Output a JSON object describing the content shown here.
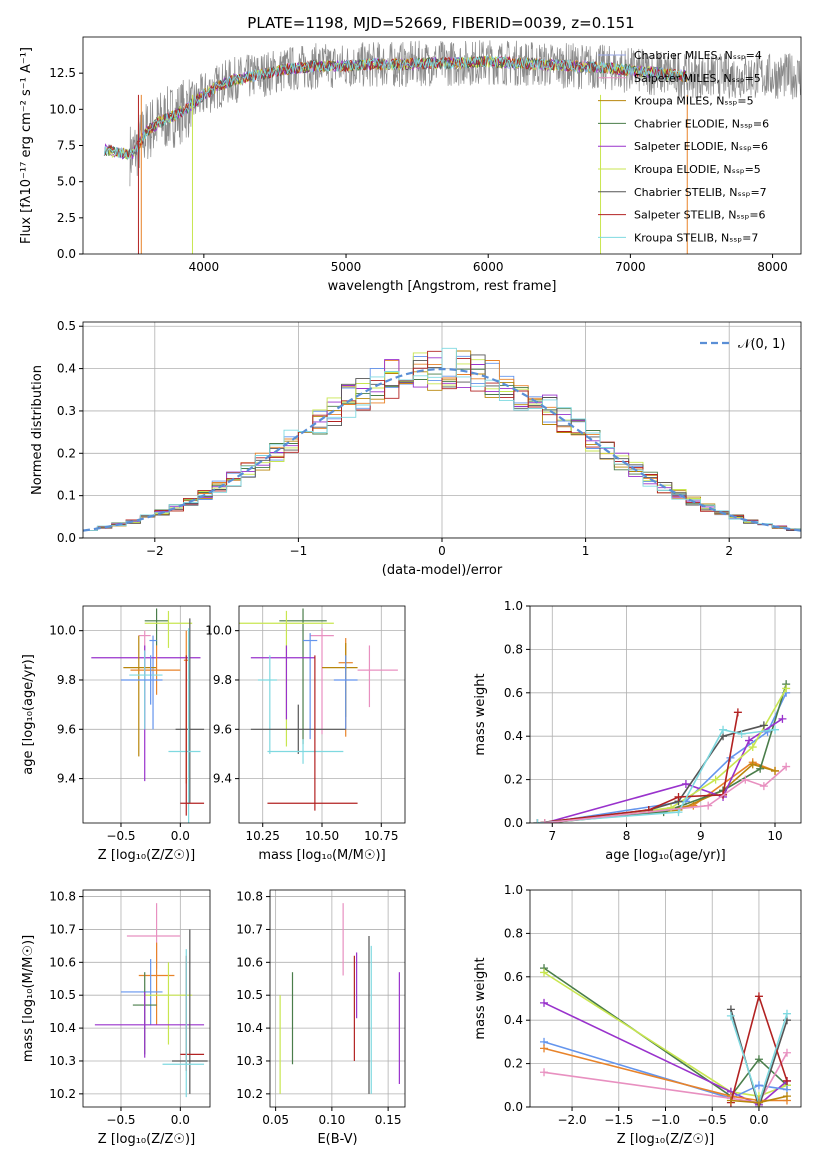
{
  "title": "PLATE=1198, MJD=52669, FIBERID=0039, z=0.151",
  "colors": [
    "#6495ed",
    "#e8832a",
    "#b8860b",
    "#4a7d4a",
    "#9932cc",
    "#c8e650",
    "#555555",
    "#b22222",
    "#7fd9e0",
    "#e890c0"
  ],
  "chart_data": [
    {
      "id": "spectrum",
      "type": "line",
      "xlabel": "wavelength [Angstrom, rest frame]",
      "ylabel": "Flux [fλ10⁻¹⁷ erg cm⁻² s⁻¹ A⁻¹]",
      "xlim": [
        3150,
        8200
      ],
      "ylim": [
        0,
        15
      ],
      "xticks": [
        4000,
        5000,
        6000,
        7000,
        8000
      ],
      "yticks": [
        0.0,
        2.5,
        5.0,
        7.5,
        10.0,
        12.5
      ],
      "grid": false,
      "legend_position": "top-right",
      "legend": [
        {
          "label": "Chabrier MILES, Nₛₛₚ=4",
          "color": "#9aa8e8"
        },
        {
          "label": "Salpeter MILES, Nₛₛₚ=5",
          "color": "#e890c0"
        },
        {
          "label": "Kroupa MILES, Nₛₛₚ=5",
          "color": "#b8860b"
        },
        {
          "label": "Chabrier ELODIE, Nₛₛₚ=6",
          "color": "#4a7d4a"
        },
        {
          "label": "Salpeter ELODIE, Nₛₛₚ=6",
          "color": "#9932cc"
        },
        {
          "label": "Kroupa ELODIE, Nₛₛₚ=5",
          "color": "#c8e650"
        },
        {
          "label": "Chabrier STELIB, Nₛₛₚ=7",
          "color": "#555555"
        },
        {
          "label": "Salpeter STELIB, Nₛₛₚ=6",
          "color": "#b22222"
        },
        {
          "label": "Kroupa STELIB, Nₛₛₚ=7",
          "color": "#7fd9e0"
        }
      ],
      "model_curve": {
        "x": [
          3300,
          3400,
          3500,
          3600,
          3700,
          3800,
          3900,
          4000,
          4100,
          4200,
          4300,
          4400,
          4500,
          4600,
          4700,
          4800,
          4900,
          5000,
          5200,
          5400,
          5600,
          5800,
          6000,
          6200,
          6400,
          6600,
          6800,
          7000,
          7200,
          7400
        ],
        "y": [
          7.2,
          7.0,
          6.9,
          8.5,
          9.2,
          9.6,
          10.2,
          11.0,
          11.6,
          12.0,
          12.2,
          12.4,
          12.6,
          12.8,
          12.9,
          13.0,
          13.0,
          13.0,
          13.1,
          13.1,
          13.2,
          13.2,
          13.3,
          13.2,
          13.1,
          13.0,
          12.9,
          12.7,
          12.5,
          12.3
        ]
      },
      "data_noise_amplitude": 1.6,
      "data_x_range": [
        3480,
        8200
      ]
    },
    {
      "id": "residuals",
      "type": "histogram",
      "xlabel": "(data-model)/error",
      "ylabel": "Normed distribution",
      "xlim": [
        -2.5,
        2.5
      ],
      "ylim": [
        0,
        0.51
      ],
      "xticks": [
        -2,
        -1,
        0,
        1,
        2
      ],
      "yticks": [
        0.0,
        0.1,
        0.2,
        0.3,
        0.4,
        0.5
      ],
      "grid": true,
      "legend": [
        {
          "label": "𝒩(0, 1)",
          "color": "#5a8fd6"
        }
      ],
      "legend_position": "top-right",
      "bin_width": 0.1,
      "reference": "normal"
    },
    {
      "id": "age-vs-z",
      "type": "errorbar",
      "xlabel": "Z [log₁₀(Z/Z☉)]",
      "ylabel": "age  [log₁₀(age/yr)]",
      "xlim": [
        -0.82,
        0.25
      ],
      "ylim": [
        9.22,
        10.1
      ],
      "xticks": [
        -0.5,
        0.0
      ],
      "yticks": [
        9.4,
        9.6,
        9.8,
        10.0
      ],
      "grid": true,
      "points": [
        {
          "x": -0.2,
          "y": 10.04,
          "xerr": [
            0.1,
            0.1
          ],
          "yerr": [
            0.1,
            0.05
          ],
          "c": 3
        },
        {
          "x": -0.1,
          "y": 10.03,
          "xerr": [
            0.2,
            0.2
          ],
          "yerr": [
            0.1,
            0.05
          ],
          "c": 5
        },
        {
          "x": -0.3,
          "y": 9.98,
          "xerr": [
            0.05,
            0.05
          ],
          "yerr": [
            0.38,
            0.02
          ],
          "c": 9
        },
        {
          "x": -0.23,
          "y": 9.96,
          "xerr": [
            0.03,
            0.03
          ],
          "yerr": [
            0.36,
            0.02
          ],
          "c": 0
        },
        {
          "x": -0.3,
          "y": 9.89,
          "xerr": [
            0.45,
            0.47
          ],
          "yerr": [
            0.5,
            0.05
          ],
          "c": 4
        },
        {
          "x": 0.05,
          "y": 9.88,
          "xerr": [
            0.02,
            0.02
          ],
          "yerr": [
            0.5,
            0.12
          ],
          "c": 1
        },
        {
          "x": -0.35,
          "y": 9.85,
          "xerr": [
            0.13,
            0.15
          ],
          "yerr": [
            0.36,
            0.13
          ],
          "c": 2
        },
        {
          "x": -0.2,
          "y": 9.84,
          "xerr": [
            0.22,
            0.2
          ],
          "yerr": [
            0.1,
            0.1
          ],
          "c": 1
        },
        {
          "x": -0.3,
          "y": 9.82,
          "xerr": [
            0.13,
            0.15
          ],
          "yerr": [
            0.22,
            0.1
          ],
          "c": 8
        },
        {
          "x": -0.25,
          "y": 9.8,
          "xerr": [
            0.25,
            0.1
          ],
          "yerr": [
            0.1,
            0.1
          ],
          "c": 0
        },
        {
          "x": 0.08,
          "y": 9.6,
          "xerr": [
            0.12,
            0.12
          ],
          "yerr": [
            0.3,
            0.45
          ],
          "c": 6
        },
        {
          "x": 0.07,
          "y": 9.51,
          "xerr": [
            0.17,
            0.1
          ],
          "yerr": [
            0.3,
            0.5
          ],
          "c": 8
        },
        {
          "x": 0.05,
          "y": 9.3,
          "xerr": [
            0.05,
            0.15
          ],
          "yerr": [
            0.05,
            0.6
          ],
          "c": 7
        }
      ]
    },
    {
      "id": "age-vs-mass",
      "type": "errorbar",
      "xlabel": "mass [log₁₀(M/M☉)]",
      "ylabel": "",
      "xlim": [
        10.15,
        10.85
      ],
      "ylim": [
        9.22,
        10.1
      ],
      "xticks": [
        10.25,
        10.5,
        10.75
      ],
      "yticks": [
        9.4,
        9.6,
        9.8,
        10.0
      ],
      "grid": true,
      "points": [
        {
          "x": 10.42,
          "y": 10.04,
          "xerr": [
            0.1,
            0.1
          ],
          "yerr": [
            0.5,
            0.05
          ],
          "c": 3
        },
        {
          "x": 10.35,
          "y": 10.03,
          "xerr": [
            0.2,
            0.2
          ],
          "yerr": [
            0.5,
            0.05
          ],
          "c": 5
        },
        {
          "x": 10.5,
          "y": 9.98,
          "xerr": [
            0.05,
            0.05
          ],
          "yerr": [
            0.4,
            0.03
          ],
          "c": 9
        },
        {
          "x": 10.45,
          "y": 9.96,
          "xerr": [
            0.03,
            0.03
          ],
          "yerr": [
            0.4,
            0.03
          ],
          "c": 0
        },
        {
          "x": 10.35,
          "y": 9.89,
          "xerr": [
            0.15,
            0.12
          ],
          "yerr": [
            0.25,
            0.05
          ],
          "c": 4
        },
        {
          "x": 10.6,
          "y": 9.87,
          "xerr": [
            0.03,
            0.03
          ],
          "yerr": [
            0.3,
            0.1
          ],
          "c": 1
        },
        {
          "x": 10.6,
          "y": 9.85,
          "xerr": [
            0.1,
            0.05
          ],
          "yerr": [
            0.2,
            0.1
          ],
          "c": 2
        },
        {
          "x": 10.7,
          "y": 9.84,
          "xerr": [
            0.05,
            0.12
          ],
          "yerr": [
            0.15,
            0.1
          ],
          "c": 9
        },
        {
          "x": 10.6,
          "y": 9.8,
          "xerr": [
            0.05,
            0.05
          ],
          "yerr": [
            0.2,
            0.1
          ],
          "c": 0
        },
        {
          "x": 10.28,
          "y": 9.8,
          "xerr": [
            0.05,
            0.03
          ],
          "yerr": [
            0.3,
            0.1
          ],
          "c": 8
        },
        {
          "x": 10.4,
          "y": 9.6,
          "xerr": [
            0.2,
            0.2
          ],
          "yerr": [
            0.1,
            0.1
          ],
          "c": 6
        },
        {
          "x": 10.42,
          "y": 9.51,
          "xerr": [
            0.15,
            0.17
          ],
          "yerr": [
            0.05,
            0.05
          ],
          "c": 8
        },
        {
          "x": 10.47,
          "y": 9.3,
          "xerr": [
            0.2,
            0.18
          ],
          "yerr": [
            0.03,
            0.6
          ],
          "c": 7
        }
      ]
    },
    {
      "id": "weight-vs-age",
      "type": "line",
      "xlabel": "age  [log₁₀(age/yr)]",
      "ylabel": "mass weight",
      "xlim": [
        6.7,
        10.35
      ],
      "ylim": [
        0,
        1.0
      ],
      "xticks": [
        7,
        8,
        9,
        10
      ],
      "yticks": [
        0.0,
        0.2,
        0.4,
        0.6,
        0.8,
        1.0
      ],
      "grid": true,
      "series": [
        {
          "c": 0,
          "x": [
            6.9,
            8.8,
            9.4,
            9.9,
            10.15
          ],
          "y": [
            0.0,
            0.1,
            0.3,
            0.42,
            0.6
          ]
        },
        {
          "c": 1,
          "x": [
            6.9,
            8.9,
            9.7,
            10.0
          ],
          "y": [
            0.0,
            0.08,
            0.28,
            0.24
          ]
        },
        {
          "c": 2,
          "x": [
            6.9,
            8.7,
            9.3,
            9.7,
            10.0
          ],
          "y": [
            0.0,
            0.06,
            0.15,
            0.27,
            0.24
          ]
        },
        {
          "c": 3,
          "x": [
            6.9,
            8.5,
            9.3,
            9.8,
            10.15
          ],
          "y": [
            0.0,
            0.05,
            0.15,
            0.25,
            0.64
          ]
        },
        {
          "c": 4,
          "x": [
            6.9,
            8.8,
            9.3,
            9.65,
            10.1
          ],
          "y": [
            0.0,
            0.18,
            0.12,
            0.38,
            0.48
          ]
        },
        {
          "c": 5,
          "x": [
            6.9,
            8.6,
            9.2,
            9.7,
            10.15
          ],
          "y": [
            0.0,
            0.07,
            0.2,
            0.35,
            0.62
          ]
        },
        {
          "c": 6,
          "x": [
            6.8,
            8.3,
            8.7,
            9.3,
            9.85
          ],
          "y": [
            0.0,
            0.06,
            0.1,
            0.4,
            0.45
          ]
        },
        {
          "c": 7,
          "x": [
            6.8,
            8.3,
            8.7,
            9.3,
            9.5
          ],
          "y": [
            0.0,
            0.06,
            0.12,
            0.13,
            0.51
          ]
        },
        {
          "c": 8,
          "x": [
            6.8,
            8.7,
            9.3,
            9.55,
            10.0
          ],
          "y": [
            0.0,
            0.05,
            0.43,
            0.41,
            0.43
          ]
        },
        {
          "c": 9,
          "x": [
            6.9,
            9.1,
            9.6,
            9.85,
            10.15
          ],
          "y": [
            0.0,
            0.08,
            0.2,
            0.17,
            0.26
          ]
        }
      ]
    },
    {
      "id": "mass-vs-z",
      "type": "errorbar",
      "xlabel": "Z [log₁₀(Z/Z☉)]",
      "ylabel": "mass [log₁₀(M/M☉)]",
      "xlim": [
        -0.82,
        0.25
      ],
      "ylim": [
        10.16,
        10.82
      ],
      "xticks": [
        -0.5,
        0.0
      ],
      "yticks": [
        10.2,
        10.3,
        10.4,
        10.5,
        10.6,
        10.7,
        10.8
      ],
      "grid": true,
      "points": [
        {
          "x": -0.2,
          "y": 10.68,
          "xerr": [
            0.25,
            0.2
          ],
          "yerr": [
            0.1,
            0.1
          ],
          "c": 9
        },
        {
          "x": -0.2,
          "y": 10.56,
          "xerr": [
            0.15,
            0.15
          ],
          "yerr": [
            0.15,
            0.1
          ],
          "c": 1
        },
        {
          "x": -0.25,
          "y": 10.51,
          "xerr": [
            0.25,
            0.1
          ],
          "yerr": [
            0.1,
            0.1
          ],
          "c": 0
        },
        {
          "x": -0.1,
          "y": 10.5,
          "xerr": [
            0.2,
            0.2
          ],
          "yerr": [
            0.15,
            0.1
          ],
          "c": 5
        },
        {
          "x": -0.3,
          "y": 10.47,
          "xerr": [
            0.1,
            0.1
          ],
          "yerr": [
            0.15,
            0.1
          ],
          "c": 3
        },
        {
          "x": -0.3,
          "y": 10.41,
          "xerr": [
            0.42,
            0.5
          ],
          "yerr": [
            0.1,
            0.1
          ],
          "c": 4
        },
        {
          "x": 0.08,
          "y": 10.3,
          "xerr": [
            0.15,
            0.15
          ],
          "yerr": [
            0.1,
            0.4
          ],
          "c": 6
        },
        {
          "x": 0.05,
          "y": 10.32,
          "xerr": [
            0.05,
            0.15
          ],
          "yerr": [
            0.05,
            0.3
          ],
          "c": 7
        },
        {
          "x": 0.05,
          "y": 10.29,
          "xerr": [
            0.2,
            0.15
          ],
          "yerr": [
            0.1,
            0.35
          ],
          "c": 8
        }
      ]
    },
    {
      "id": "mass-vs-ebv",
      "type": "errorbar",
      "xlabel": "E(B-V)",
      "ylabel": "",
      "xlim": [
        0.045,
        0.165
      ],
      "ylim": [
        10.16,
        10.82
      ],
      "xticks": [
        0.05,
        0.1,
        0.15
      ],
      "yticks": [
        10.2,
        10.3,
        10.4,
        10.5,
        10.6,
        10.7,
        10.8
      ],
      "grid": true,
      "points": [
        {
          "x": 0.054,
          "y": 10.35,
          "yerr": [
            0.15,
            0.15
          ],
          "c": 5
        },
        {
          "x": 0.065,
          "y": 10.43,
          "yerr": [
            0.14,
            0.14
          ],
          "c": 3
        },
        {
          "x": 0.11,
          "y": 10.68,
          "yerr": [
            0.12,
            0.1
          ],
          "c": 9
        },
        {
          "x": 0.12,
          "y": 10.52,
          "yerr": [
            0.22,
            0.1
          ],
          "c": 7
        },
        {
          "x": 0.122,
          "y": 10.53,
          "yerr": [
            0.1,
            0.1
          ],
          "c": 4
        },
        {
          "x": 0.133,
          "y": 10.48,
          "yerr": [
            0.28,
            0.2
          ],
          "c": 6
        },
        {
          "x": 0.135,
          "y": 10.45,
          "yerr": [
            0.25,
            0.2
          ],
          "c": 8
        },
        {
          "x": 0.16,
          "y": 10.4,
          "yerr": [
            0.17,
            0.17
          ],
          "c": 4
        }
      ]
    },
    {
      "id": "weight-vs-z",
      "type": "line",
      "xlabel": "Z [log₁₀(Z/Z☉)]",
      "ylabel": "mass weight",
      "xlim": [
        -2.45,
        0.45
      ],
      "ylim": [
        0,
        1.0
      ],
      "xticks": [
        -2.0,
        -1.5,
        -1.0,
        -0.5,
        0.0
      ],
      "yticks": [
        0.0,
        0.2,
        0.4,
        0.6,
        0.8,
        1.0
      ],
      "grid": true,
      "series": [
        {
          "c": 3,
          "x": [
            -2.3,
            -0.3,
            0.0,
            0.3
          ],
          "y": [
            0.64,
            0.05,
            0.22,
            0.1
          ]
        },
        {
          "c": 5,
          "x": [
            -2.3,
            -0.3,
            0.0,
            0.3
          ],
          "y": [
            0.62,
            0.07,
            0.05,
            0.1
          ]
        },
        {
          "c": 4,
          "x": [
            -2.3,
            -0.3,
            0.0,
            0.3
          ],
          "y": [
            0.48,
            0.07,
            0.01,
            0.12
          ]
        },
        {
          "c": 0,
          "x": [
            -2.3,
            -0.3,
            0.0,
            0.3
          ],
          "y": [
            0.3,
            0.04,
            0.1,
            0.08
          ]
        },
        {
          "c": 1,
          "x": [
            -2.3,
            -0.3,
            0.0,
            0.3
          ],
          "y": [
            0.27,
            0.05,
            0.03,
            0.03
          ]
        },
        {
          "c": 9,
          "x": [
            -2.3,
            -0.3,
            0.0,
            0.3
          ],
          "y": [
            0.16,
            0.04,
            0.02,
            0.25
          ]
        },
        {
          "c": 6,
          "x": [
            -0.3,
            0.0,
            0.3
          ],
          "y": [
            0.45,
            0.0,
            0.4
          ]
        },
        {
          "c": 7,
          "x": [
            -0.3,
            0.0,
            0.3
          ],
          "y": [
            0.02,
            0.51,
            0.12
          ]
        },
        {
          "c": 8,
          "x": [
            -0.3,
            0.0,
            0.3
          ],
          "y": [
            0.42,
            0.02,
            0.43
          ]
        },
        {
          "c": 2,
          "x": [
            -0.3,
            0.0,
            0.3
          ],
          "y": [
            0.03,
            0.02,
            0.05
          ]
        }
      ]
    }
  ]
}
